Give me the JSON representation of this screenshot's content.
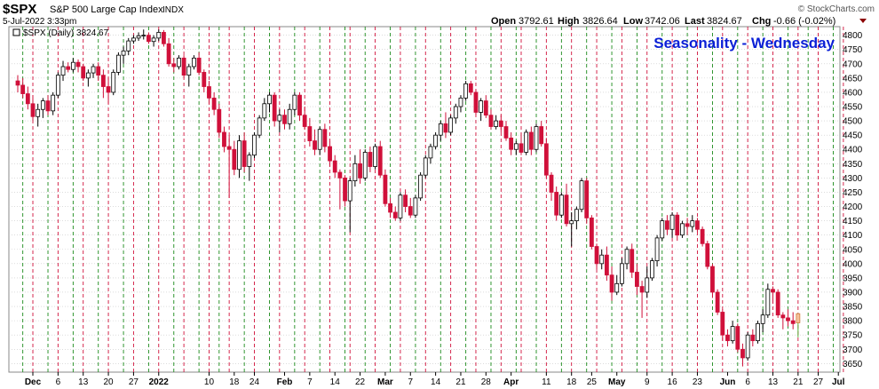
{
  "header": {
    "symbol": "$SPX",
    "name": "S&P 500 Large Cap Index",
    "exchange": "INDX",
    "date_time": "5-Jul-2022 3:33pm",
    "open_label": "Open",
    "open": "3792.61",
    "high_label": "High",
    "high": "3826.64",
    "low_label": "Low",
    "low": "3742.06",
    "last_label": "Last",
    "last": "3824.67",
    "chg_label": "Chg",
    "chg": "-0.66 (-0.02%)",
    "watermark": "© StockCharts.com",
    "legend": "$SPX (Daily) 3824.67"
  },
  "colors": {
    "up": "#ffffff",
    "down": "#d0103a",
    "red_line": "#d0103a",
    "green_line": "#1a8a1a",
    "title": "#0a1fd6",
    "grid": "#c8c8c8"
  },
  "chart_data": {
    "type": "candlestick",
    "title": "Seasonality - Wednesday",
    "y_axis_position": "right",
    "ylim": [
      3620,
      4830
    ],
    "y_ticks": [
      3650,
      3700,
      3750,
      3800,
      3850,
      3900,
      3950,
      4000,
      4050,
      4100,
      4150,
      4200,
      4250,
      4300,
      4350,
      4400,
      4450,
      4500,
      4550,
      4600,
      4650,
      4700,
      4750,
      4800
    ],
    "x_ticks": [
      {
        "label": "Dec",
        "i": 3,
        "bold": true
      },
      {
        "label": "6",
        "i": 8
      },
      {
        "label": "13",
        "i": 13
      },
      {
        "label": "20",
        "i": 18
      },
      {
        "label": "27",
        "i": 23
      },
      {
        "label": "2022",
        "i": 28,
        "bold": true
      },
      {
        "label": "10",
        "i": 38
      },
      {
        "label": "18",
        "i": 43
      },
      {
        "label": "24",
        "i": 47
      },
      {
        "label": "Feb",
        "i": 53,
        "bold": true
      },
      {
        "label": "7",
        "i": 58
      },
      {
        "label": "14",
        "i": 63
      },
      {
        "label": "22",
        "i": 68
      },
      {
        "label": "Mar",
        "i": 73,
        "bold": true
      },
      {
        "label": "7",
        "i": 78
      },
      {
        "label": "14",
        "i": 83
      },
      {
        "label": "21",
        "i": 88
      },
      {
        "label": "28",
        "i": 93
      },
      {
        "label": "Apr",
        "i": 98,
        "bold": true
      },
      {
        "label": "11",
        "i": 105
      },
      {
        "label": "18",
        "i": 110
      },
      {
        "label": "25",
        "i": 114
      },
      {
        "label": "May",
        "i": 119,
        "bold": true
      },
      {
        "label": "9",
        "i": 125
      },
      {
        "label": "16",
        "i": 130
      },
      {
        "label": "23",
        "i": 135
      },
      {
        "label": "Jun",
        "i": 141,
        "bold": true
      },
      {
        "label": "6",
        "i": 145
      },
      {
        "label": "13",
        "i": 150
      },
      {
        "label": "21",
        "i": 155
      },
      {
        "label": "27",
        "i": 159
      },
      {
        "label": "Jul",
        "i": 163,
        "bold": true
      }
    ],
    "green_lines": [
      1,
      6,
      11,
      16,
      21,
      26,
      31,
      36,
      40,
      45,
      50,
      55,
      60,
      65,
      69,
      74,
      79,
      84,
      89,
      94,
      99,
      103,
      108,
      113,
      118,
      123,
      128,
      133,
      138,
      143,
      148,
      153,
      157,
      162
    ],
    "red_lines": [
      3,
      8,
      13,
      18,
      23,
      28,
      33,
      38,
      42,
      47,
      52,
      57,
      62,
      66,
      71,
      76,
      81,
      86,
      91,
      96,
      100,
      105,
      110,
      115,
      120,
      125,
      130,
      135,
      140,
      145,
      150,
      155,
      159,
      164
    ],
    "candles": [
      [
        4640,
        4660,
        4600,
        4625
      ],
      [
        4625,
        4650,
        4580,
        4595
      ],
      [
        4595,
        4620,
        4540,
        4560
      ],
      [
        4560,
        4590,
        4500,
        4515
      ],
      [
        4515,
        4560,
        4480,
        4540
      ],
      [
        4540,
        4580,
        4510,
        4570
      ],
      [
        4570,
        4590,
        4520,
        4535
      ],
      [
        4535,
        4600,
        4520,
        4590
      ],
      [
        4590,
        4670,
        4580,
        4660
      ],
      [
        4660,
        4710,
        4640,
        4690
      ],
      [
        4690,
        4705,
        4670,
        4680
      ],
      [
        4680,
        4720,
        4670,
        4705
      ],
      [
        4705,
        4715,
        4670,
        4690
      ],
      [
        4690,
        4700,
        4640,
        4650
      ],
      [
        4650,
        4680,
        4620,
        4668
      ],
      [
        4668,
        4700,
        4650,
        4690
      ],
      [
        4690,
        4705,
        4640,
        4660
      ],
      [
        4660,
        4680,
        4580,
        4620
      ],
      [
        4620,
        4650,
        4560,
        4600
      ],
      [
        4600,
        4680,
        4590,
        4670
      ],
      [
        4670,
        4740,
        4660,
        4730
      ],
      [
        4730,
        4760,
        4700,
        4745
      ],
      [
        4745,
        4790,
        4730,
        4780
      ],
      [
        4780,
        4800,
        4770,
        4790
      ],
      [
        4790,
        4810,
        4780,
        4798
      ],
      [
        4798,
        4820,
        4785,
        4800
      ],
      [
        4800,
        4810,
        4770,
        4778
      ],
      [
        4778,
        4800,
        4760,
        4790
      ],
      [
        4790,
        4820,
        4780,
        4810
      ],
      [
        4810,
        4818,
        4760,
        4770
      ],
      [
        4770,
        4790,
        4690,
        4700
      ],
      [
        4700,
        4720,
        4670,
        4690
      ],
      [
        4690,
        4730,
        4680,
        4720
      ],
      [
        4720,
        4730,
        4650,
        4660
      ],
      [
        4660,
        4700,
        4620,
        4690
      ],
      [
        4690,
        4730,
        4680,
        4720
      ],
      [
        4720,
        4740,
        4660,
        4670
      ],
      [
        4670,
        4680,
        4600,
        4620
      ],
      [
        4620,
        4640,
        4560,
        4580
      ],
      [
        4580,
        4600,
        4520,
        4540
      ],
      [
        4540,
        4560,
        4440,
        4460
      ],
      [
        4460,
        4480,
        4390,
        4410
      ],
      [
        4410,
        4450,
        4230,
        4400
      ],
      [
        4400,
        4430,
        4310,
        4330
      ],
      [
        4330,
        4450,
        4300,
        4430
      ],
      [
        4430,
        4460,
        4320,
        4340
      ],
      [
        4340,
        4390,
        4290,
        4380
      ],
      [
        4380,
        4460,
        4370,
        4450
      ],
      [
        4450,
        4520,
        4440,
        4510
      ],
      [
        4510,
        4580,
        4500,
        4560
      ],
      [
        4560,
        4600,
        4530,
        4590
      ],
      [
        4590,
        4600,
        4480,
        4500
      ],
      [
        4500,
        4540,
        4460,
        4520
      ],
      [
        4520,
        4540,
        4470,
        4490
      ],
      [
        4490,
        4560,
        4470,
        4540
      ],
      [
        4540,
        4600,
        4520,
        4590
      ],
      [
        4590,
        4600,
        4500,
        4520
      ],
      [
        4520,
        4550,
        4470,
        4480
      ],
      [
        4480,
        4510,
        4410,
        4430
      ],
      [
        4430,
        4470,
        4380,
        4400
      ],
      [
        4400,
        4480,
        4380,
        4470
      ],
      [
        4470,
        4490,
        4390,
        4410
      ],
      [
        4410,
        4430,
        4340,
        4360
      ],
      [
        4360,
        4380,
        4300,
        4320
      ],
      [
        4320,
        4330,
        4190,
        4300
      ],
      [
        4300,
        4310,
        4200,
        4220
      ],
      [
        4220,
        4300,
        4110,
        4290
      ],
      [
        4290,
        4380,
        4270,
        4350
      ],
      [
        4350,
        4400,
        4280,
        4300
      ],
      [
        4300,
        4400,
        4290,
        4390
      ],
      [
        4390,
        4410,
        4320,
        4340
      ],
      [
        4340,
        4420,
        4330,
        4410
      ],
      [
        4410,
        4430,
        4300,
        4310
      ],
      [
        4310,
        4330,
        4200,
        4210
      ],
      [
        4210,
        4230,
        4160,
        4180
      ],
      [
        4180,
        4200,
        4150,
        4160
      ],
      [
        4160,
        4250,
        4150,
        4240
      ],
      [
        4240,
        4260,
        4180,
        4200
      ],
      [
        4200,
        4230,
        4160,
        4170
      ],
      [
        4170,
        4240,
        4160,
        4230
      ],
      [
        4230,
        4320,
        4220,
        4310
      ],
      [
        4310,
        4380,
        4300,
        4370
      ],
      [
        4370,
        4420,
        4350,
        4410
      ],
      [
        4410,
        4460,
        4400,
        4450
      ],
      [
        4450,
        4500,
        4430,
        4490
      ],
      [
        4490,
        4530,
        4440,
        4460
      ],
      [
        4460,
        4520,
        4450,
        4510
      ],
      [
        4510,
        4560,
        4490,
        4550
      ],
      [
        4550,
        4590,
        4530,
        4580
      ],
      [
        4580,
        4640,
        4570,
        4630
      ],
      [
        4630,
        4640,
        4590,
        4600
      ],
      [
        4600,
        4610,
        4520,
        4530
      ],
      [
        4530,
        4580,
        4500,
        4570
      ],
      [
        4570,
        4590,
        4510,
        4520
      ],
      [
        4520,
        4540,
        4470,
        4480
      ],
      [
        4480,
        4520,
        4470,
        4500
      ],
      [
        4500,
        4520,
        4460,
        4480
      ],
      [
        4480,
        4500,
        4430,
        4440
      ],
      [
        4440,
        4460,
        4380,
        4400
      ],
      [
        4400,
        4430,
        4380,
        4420
      ],
      [
        4420,
        4460,
        4380,
        4390
      ],
      [
        4390,
        4470,
        4380,
        4460
      ],
      [
        4460,
        4480,
        4380,
        4400
      ],
      [
        4400,
        4490,
        4390,
        4480
      ],
      [
        4480,
        4500,
        4410,
        4420
      ],
      [
        4420,
        4440,
        4300,
        4310
      ],
      [
        4310,
        4320,
        4220,
        4250
      ],
      [
        4250,
        4270,
        4150,
        4170
      ],
      [
        4170,
        4250,
        4160,
        4240
      ],
      [
        4240,
        4280,
        4130,
        4140
      ],
      [
        4140,
        4180,
        4060,
        4150
      ],
      [
        4150,
        4200,
        4120,
        4190
      ],
      [
        4190,
        4300,
        4180,
        4290
      ],
      [
        4290,
        4300,
        4140,
        4160
      ],
      [
        4160,
        4170,
        4050,
        4060
      ],
      [
        4060,
        4070,
        3980,
        4000
      ],
      [
        4000,
        4050,
        3980,
        4030
      ],
      [
        4030,
        4060,
        3940,
        3960
      ],
      [
        3960,
        3990,
        3870,
        3900
      ],
      [
        3900,
        3960,
        3890,
        3930
      ],
      [
        3930,
        4020,
        3920,
        4000
      ],
      [
        4000,
        4060,
        3980,
        4050
      ],
      [
        4050,
        4070,
        3950,
        3970
      ],
      [
        3970,
        4000,
        3890,
        3920
      ],
      [
        3920,
        3940,
        3810,
        3900
      ],
      [
        3900,
        3990,
        3880,
        3950
      ],
      [
        3950,
        4020,
        3940,
        4010
      ],
      [
        4010,
        4100,
        3990,
        4090
      ],
      [
        4090,
        4160,
        4080,
        4150
      ],
      [
        4150,
        4170,
        4100,
        4120
      ],
      [
        4120,
        4180,
        4090,
        4170
      ],
      [
        4170,
        4180,
        4080,
        4100
      ],
      [
        4100,
        4150,
        4090,
        4140
      ],
      [
        4140,
        4160,
        4100,
        4130
      ],
      [
        4130,
        4170,
        4110,
        4150
      ],
      [
        4150,
        4160,
        4110,
        4120
      ],
      [
        4120,
        4130,
        4060,
        4070
      ],
      [
        4070,
        4080,
        3980,
        3990
      ],
      [
        3990,
        4000,
        3880,
        3900
      ],
      [
        3900,
        3910,
        3820,
        3830
      ],
      [
        3830,
        3840,
        3730,
        3750
      ],
      [
        3750,
        3770,
        3710,
        3730
      ],
      [
        3730,
        3800,
        3720,
        3780
      ],
      [
        3780,
        3790,
        3690,
        3700
      ],
      [
        3700,
        3720,
        3640,
        3670
      ],
      [
        3670,
        3760,
        3660,
        3750
      ],
      [
        3750,
        3770,
        3710,
        3730
      ],
      [
        3730,
        3800,
        3720,
        3790
      ],
      [
        3790,
        3840,
        3760,
        3820
      ],
      [
        3820,
        3930,
        3810,
        3910
      ],
      [
        3910,
        3920,
        3860,
        3900
      ],
      [
        3900,
        3910,
        3810,
        3820
      ],
      [
        3820,
        3830,
        3770,
        3810
      ],
      [
        3810,
        3840,
        3780,
        3800
      ],
      [
        3800,
        3830,
        3770,
        3790
      ],
      [
        3792.61,
        3826.64,
        3742.06,
        3824.67
      ]
    ]
  }
}
